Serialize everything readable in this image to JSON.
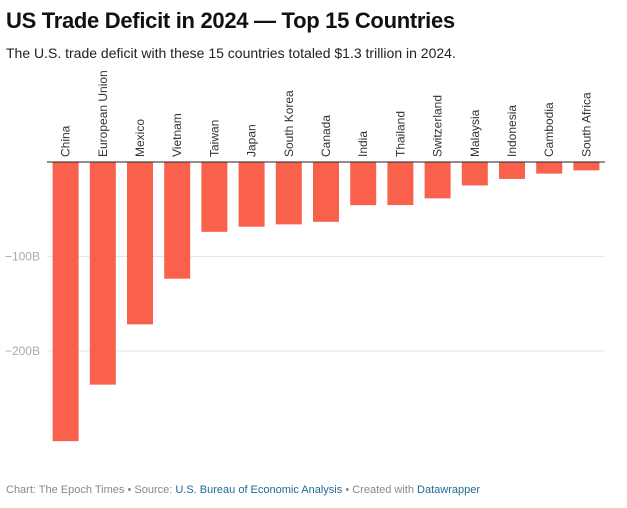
{
  "header": {
    "title": "US Trade Deficit in 2024 — Top 15 Countries",
    "subtitle": "The U.S. trade deficit with these 15 countries totaled $1.3 trillion in 2024."
  },
  "footer": {
    "chart_credit": "Chart: The Epoch Times",
    "separator": " • ",
    "source_prefix": "Source: ",
    "source_link": "U.S. Bureau of Economic Analysis",
    "created_prefix": "Created with ",
    "created_link": "Datawrapper"
  },
  "colors": {
    "bar": "#f9614c",
    "link": "#1d6b96",
    "gridline": "#e6e6e6",
    "baseline": "#222222"
  },
  "chart_data": {
    "type": "bar",
    "orientation": "vertical",
    "title": "US Trade Deficit in 2024 — Top 15 Countries",
    "subtitle": "The U.S. trade deficit with these 15 countries totaled $1.3 trillion in 2024.",
    "xlabel": "",
    "ylabel": "",
    "unit": "billion USD",
    "categories": [
      "China",
      "European Union",
      "Mexico",
      "Vietnam",
      "Taiwan",
      "Japan",
      "South Korea",
      "Canada",
      "India",
      "Thailand",
      "Switzerland",
      "Malaysia",
      "Indonesia",
      "Cambodia",
      "South Africa"
    ],
    "values": [
      -295.4,
      -235.6,
      -171.8,
      -123.5,
      -73.9,
      -68.5,
      -66.0,
      -63.3,
      -45.7,
      -45.6,
      -38.5,
      -24.8,
      -17.9,
      -12.3,
      -8.8
    ],
    "ylim": [
      -300,
      0
    ],
    "yticks": [
      {
        "value": -100,
        "label": "−100B"
      },
      {
        "value": -200,
        "label": "−200B"
      }
    ],
    "grid": true,
    "category_labels_position": "top-rotated",
    "legend": "none"
  }
}
